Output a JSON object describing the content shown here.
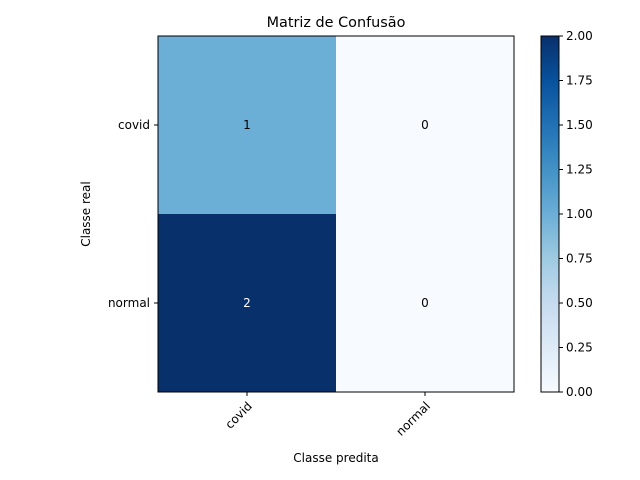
{
  "chart_data": {
    "type": "heatmap",
    "title": "Matriz de Confusão",
    "xlabel": "Classe predita",
    "ylabel": "Classe real",
    "x_categories": [
      "covid",
      "normal"
    ],
    "y_categories": [
      "covid",
      "normal"
    ],
    "values": [
      [
        1,
        0
      ],
      [
        2,
        0
      ]
    ],
    "cell_labels": [
      [
        "1",
        "0"
      ],
      [
        "2",
        "0"
      ]
    ],
    "colormap": "Blues",
    "vmin": 0,
    "vmax": 2,
    "colorbar_ticks": [
      "0.00",
      "0.25",
      "0.50",
      "0.75",
      "1.00",
      "1.25",
      "1.50",
      "1.75",
      "2.00"
    ],
    "x_tick_rotation_deg": 45,
    "grid": false
  }
}
